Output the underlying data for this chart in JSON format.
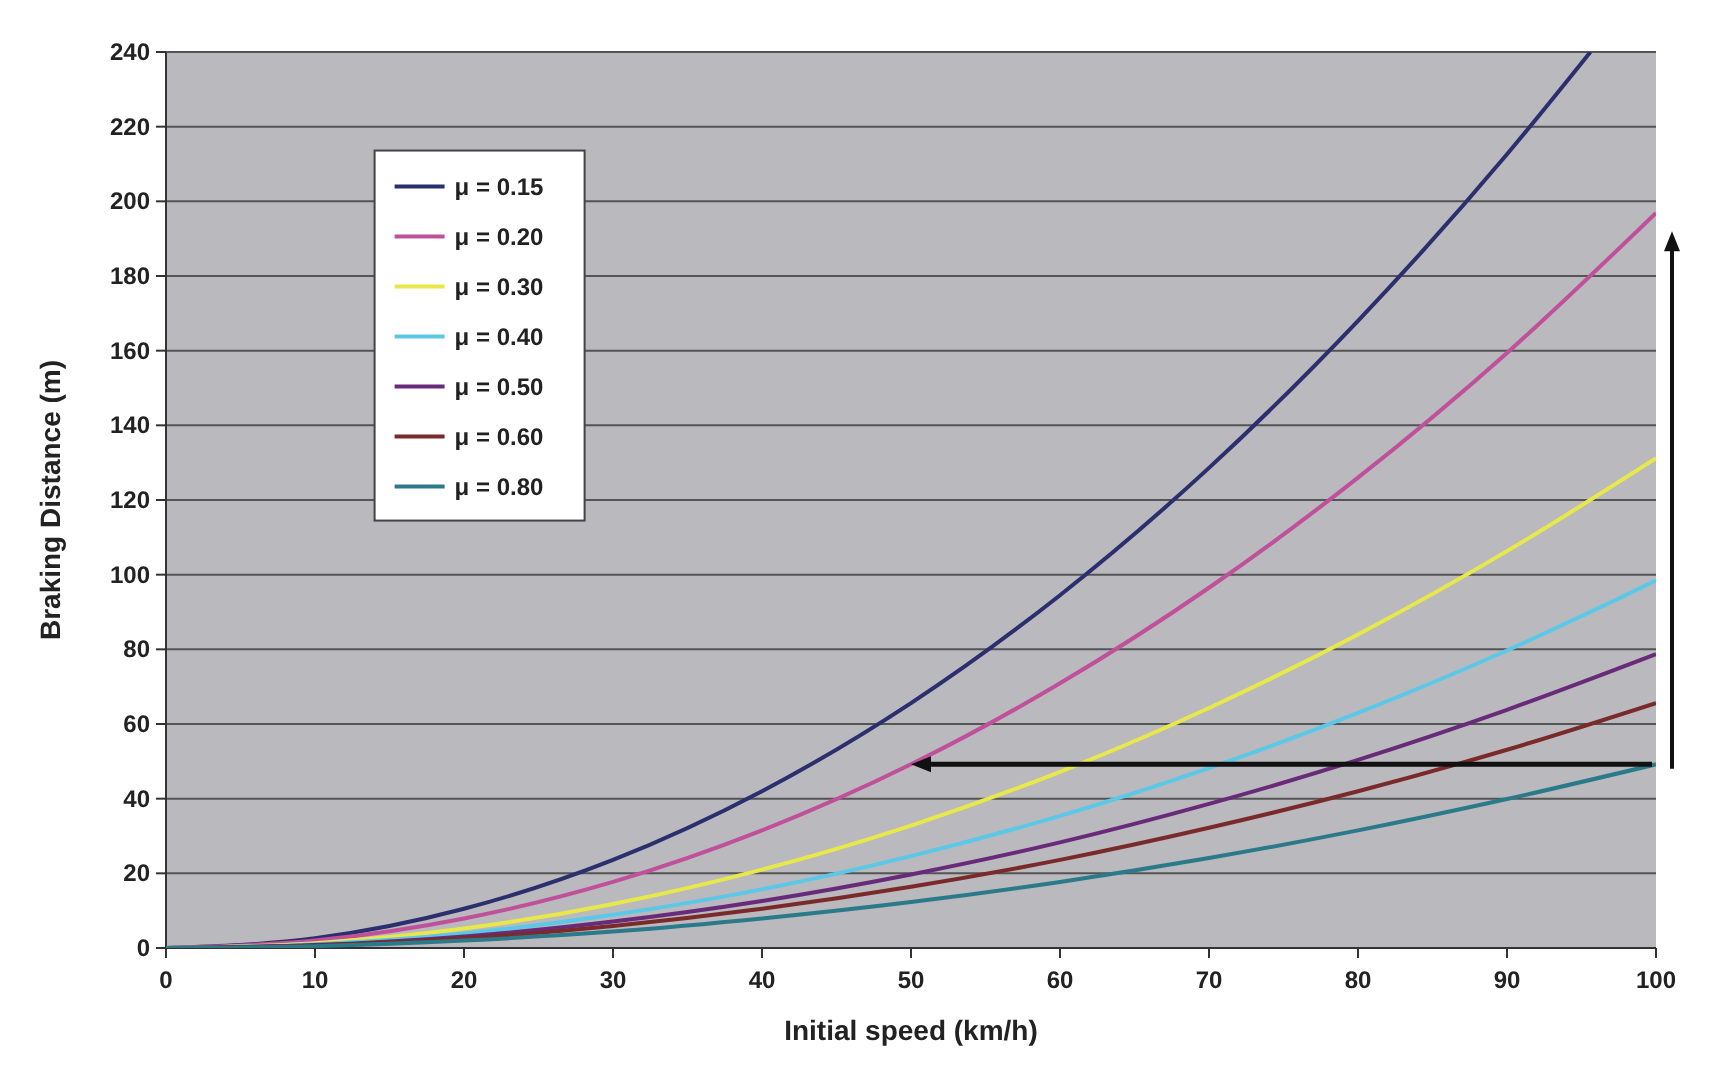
{
  "chart_data": {
    "type": "line",
    "xlabel": "Initial speed (km/h)",
    "ylabel": "Braking Distance (m)",
    "x": [
      0,
      10,
      20,
      30,
      40,
      50,
      60,
      70,
      80,
      90,
      100
    ],
    "xlim": [
      0,
      100
    ],
    "xticks": [
      0,
      10,
      20,
      30,
      40,
      50,
      60,
      70,
      80,
      90,
      100
    ],
    "ylim": [
      0,
      240
    ],
    "yticks": [
      0,
      20,
      40,
      60,
      80,
      100,
      120,
      140,
      160,
      180,
      200,
      220,
      240
    ],
    "grid": "y",
    "legend": "top left",
    "marker": "none",
    "line_style": "solid",
    "series": [
      {
        "name": "μ = 0.15",
        "color": "#2b2f6e",
        "x": [
          0,
          10,
          20,
          30,
          40,
          50,
          60,
          70,
          80,
          90,
          95.6
        ],
        "values": [
          0,
          2.6,
          10.5,
          23.6,
          42,
          65.6,
          94.5,
          128.6,
          168,
          212.6,
          240
        ]
      },
      {
        "name": "μ = 0.20",
        "color": "#c0509a",
        "values": [
          0,
          2,
          7.9,
          17.7,
          31.5,
          49.2,
          70.9,
          96.5,
          126,
          159.4,
          196.9
        ]
      },
      {
        "name": "μ = 0.30",
        "color": "#e8e84a",
        "values": [
          0,
          1.3,
          5.2,
          11.8,
          21,
          32.8,
          47.2,
          64.3,
          84,
          106.3,
          131.2
        ]
      },
      {
        "name": "μ = 0.40",
        "color": "#5cc8e8",
        "values": [
          0,
          1,
          3.9,
          8.9,
          15.7,
          24.6,
          35.4,
          48.2,
          63,
          79.7,
          98.4
        ]
      },
      {
        "name": "μ = 0.50",
        "color": "#6a2a7a",
        "values": [
          0,
          0.8,
          3.1,
          7.1,
          12.6,
          19.7,
          28.3,
          38.6,
          50.4,
          63.8,
          78.7
        ]
      },
      {
        "name": "μ = 0.60",
        "color": "#7a2a2a",
        "values": [
          0,
          0.7,
          2.6,
          5.9,
          10.5,
          16.4,
          23.6,
          32.2,
          42,
          53.1,
          65.6
        ]
      },
      {
        "name": "μ = 0.80",
        "color": "#2a7a8a",
        "values": [
          0,
          0.5,
          2,
          4.4,
          7.9,
          12.3,
          17.7,
          24.1,
          31.5,
          39.9,
          49.2
        ]
      }
    ]
  }
}
